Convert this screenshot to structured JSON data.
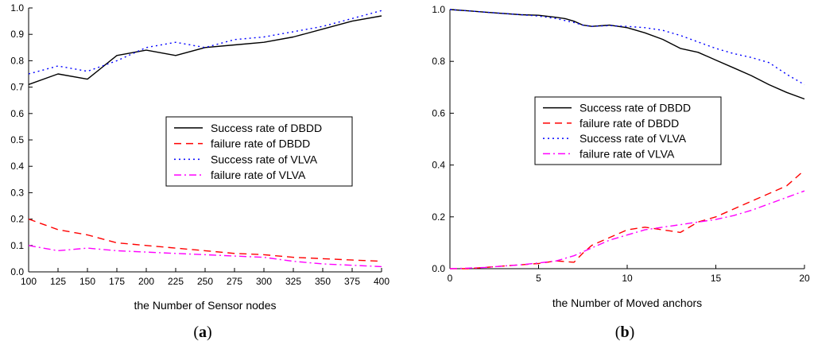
{
  "chart_data": [
    {
      "type": "line",
      "panel": "a",
      "caption_open": "(",
      "caption_letter": "a",
      "caption_close": ")",
      "title": "",
      "xlabel": "the Number of Sensor nodes",
      "ylabel": "",
      "xlim": [
        100,
        400
      ],
      "ylim": [
        0.0,
        1.0
      ],
      "xticks": [
        100,
        125,
        150,
        175,
        200,
        225,
        250,
        275,
        300,
        325,
        350,
        375,
        400
      ],
      "yticks": [
        0.0,
        0.1,
        0.2,
        0.3,
        0.4,
        0.5,
        0.6,
        0.7,
        0.8,
        0.9,
        1.0
      ],
      "ytick_labels": [
        "0.0",
        "0.1",
        "0.2",
        "0.3",
        "0.4",
        "0.5",
        "0.6",
        "0.7",
        "0.8",
        "0.9",
        "1.0"
      ],
      "legend_position": "center-right",
      "series": [
        {
          "name": "Success rate of DBDD",
          "color": "#000000",
          "style": "solid",
          "x": [
            100,
            125,
            150,
            175,
            200,
            225,
            250,
            275,
            300,
            325,
            350,
            375,
            400
          ],
          "y": [
            0.71,
            0.75,
            0.73,
            0.82,
            0.84,
            0.82,
            0.85,
            0.86,
            0.87,
            0.89,
            0.92,
            0.95,
            0.97
          ]
        },
        {
          "name": "failure rate of DBDD",
          "color": "#ff0000",
          "style": "dash",
          "x": [
            100,
            125,
            150,
            175,
            200,
            225,
            250,
            275,
            300,
            325,
            350,
            375,
            400
          ],
          "y": [
            0.2,
            0.16,
            0.14,
            0.11,
            0.1,
            0.09,
            0.08,
            0.07,
            0.065,
            0.055,
            0.05,
            0.045,
            0.04
          ]
        },
        {
          "name": "Success rate of VLVA",
          "color": "#0000ff",
          "style": "dot",
          "x": [
            100,
            125,
            150,
            175,
            200,
            225,
            250,
            275,
            300,
            325,
            350,
            375,
            400
          ],
          "y": [
            0.75,
            0.78,
            0.76,
            0.8,
            0.85,
            0.87,
            0.85,
            0.88,
            0.89,
            0.91,
            0.93,
            0.96,
            0.99
          ]
        },
        {
          "name": "failure rate of VLVA",
          "color": "#ff00ff",
          "style": "dashdot",
          "x": [
            100,
            125,
            150,
            175,
            200,
            225,
            250,
            275,
            300,
            325,
            350,
            375,
            400
          ],
          "y": [
            0.1,
            0.08,
            0.09,
            0.08,
            0.075,
            0.07,
            0.065,
            0.06,
            0.055,
            0.04,
            0.03,
            0.025,
            0.02
          ]
        }
      ]
    },
    {
      "type": "line",
      "panel": "b",
      "caption_open": "(",
      "caption_letter": "b",
      "caption_close": ")",
      "title": "",
      "xlabel": "the Number of Moved anchors",
      "ylabel": "",
      "xlim": [
        0,
        20
      ],
      "ylim": [
        0.0,
        1.0
      ],
      "xticks": [
        0,
        5,
        10,
        15,
        20
      ],
      "yticks": [
        0.0,
        0.2,
        0.4,
        0.6,
        0.8,
        1.0
      ],
      "ytick_labels": [
        "0.0",
        "0.2",
        "0.4",
        "0.6",
        "0.8",
        "1.0"
      ],
      "legend_position": "center",
      "series": [
        {
          "name": "Success rate of DBDD",
          "color": "#000000",
          "style": "solid",
          "x": [
            0,
            1,
            2,
            3,
            4,
            5,
            6,
            6.5,
            7,
            7.5,
            8,
            9,
            10,
            11,
            12,
            13,
            14,
            15,
            16,
            17,
            18,
            19,
            20
          ],
          "y": [
            1.0,
            0.995,
            0.99,
            0.985,
            0.98,
            0.978,
            0.97,
            0.965,
            0.955,
            0.94,
            0.935,
            0.94,
            0.93,
            0.91,
            0.885,
            0.85,
            0.835,
            0.805,
            0.775,
            0.745,
            0.71,
            0.68,
            0.655
          ]
        },
        {
          "name": "failure rate of DBDD",
          "color": "#ff0000",
          "style": "dash",
          "x": [
            0,
            1,
            2,
            3,
            4,
            5,
            6,
            7,
            7.5,
            8,
            9,
            10,
            11,
            12,
            13,
            14,
            15,
            16,
            17,
            18,
            19,
            20
          ],
          "y": [
            0.0,
            0.0,
            0.005,
            0.01,
            0.015,
            0.02,
            0.03,
            0.025,
            0.06,
            0.09,
            0.12,
            0.15,
            0.16,
            0.15,
            0.14,
            0.18,
            0.2,
            0.23,
            0.26,
            0.29,
            0.32,
            0.38
          ]
        },
        {
          "name": "Success rate of VLVA",
          "color": "#0000ff",
          "style": "dot",
          "x": [
            0,
            1,
            2,
            3,
            4,
            5,
            6,
            7,
            7.5,
            8,
            9,
            10,
            11,
            12,
            13,
            14,
            15,
            16,
            17,
            18,
            19,
            20
          ],
          "y": [
            1.0,
            0.995,
            0.99,
            0.985,
            0.98,
            0.975,
            0.965,
            0.95,
            0.94,
            0.935,
            0.938,
            0.935,
            0.93,
            0.92,
            0.9,
            0.875,
            0.85,
            0.83,
            0.815,
            0.795,
            0.75,
            0.71
          ]
        },
        {
          "name": "failure rate of VLVA",
          "color": "#ff00ff",
          "style": "dashdot",
          "x": [
            0,
            1,
            2,
            3,
            4,
            5,
            6,
            7,
            8,
            9,
            10,
            11,
            12,
            13,
            14,
            15,
            16,
            17,
            18,
            19,
            20
          ],
          "y": [
            0.0,
            0.002,
            0.005,
            0.01,
            0.015,
            0.022,
            0.03,
            0.05,
            0.08,
            0.11,
            0.13,
            0.15,
            0.16,
            0.17,
            0.18,
            0.19,
            0.205,
            0.225,
            0.25,
            0.275,
            0.3
          ]
        }
      ]
    }
  ]
}
